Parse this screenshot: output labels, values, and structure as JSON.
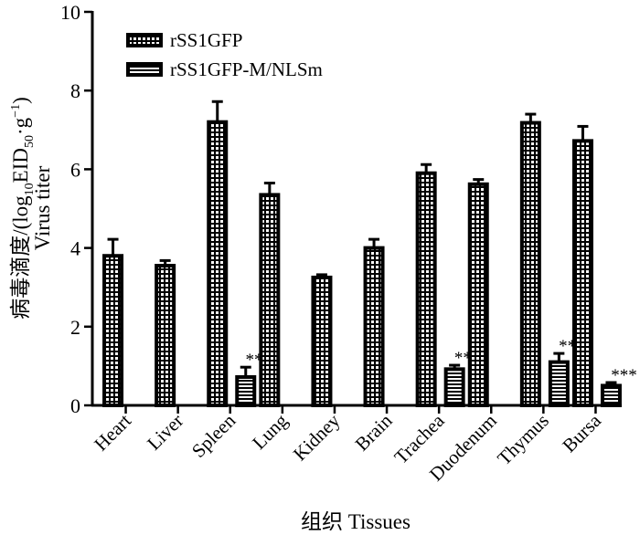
{
  "chart_data": {
    "type": "bar",
    "title": "",
    "xlabel": "组织 Tissues",
    "ylabel_cn": "病毒滴度/(log",
    "ylabel_sub10": "10",
    "ylabel_eid": "EID",
    "ylabel_sub50": "50",
    "ylabel_g": "·g",
    "ylabel_sup": "−1",
    "ylabel_close": ")",
    "ylabel_en": "Virus titer",
    "ylim": [
      0,
      10
    ],
    "yticks": [
      "0",
      "2",
      "4",
      "6",
      "8",
      "10"
    ],
    "categories": [
      "Heart",
      "Liver",
      "Spleen",
      "Lung",
      "Kidney",
      "Brain",
      "Trachea",
      "Duodenum",
      "Thymus",
      "Bursa"
    ],
    "series": [
      {
        "name": "rSS1GFP",
        "pattern": "checker",
        "values": [
          3.8,
          3.55,
          7.2,
          5.35,
          3.25,
          4.0,
          5.9,
          5.62,
          7.18,
          6.72
        ],
        "errors": [
          0.42,
          0.13,
          0.52,
          0.3,
          0.07,
          0.22,
          0.22,
          0.12,
          0.22,
          0.37
        ]
      },
      {
        "name": "rSS1GFP-M/NLSm",
        "pattern": "stripes",
        "values": [
          null,
          null,
          0.72,
          null,
          null,
          null,
          0.92,
          null,
          1.1,
          0.5
        ],
        "errors": [
          null,
          null,
          0.25,
          null,
          null,
          null,
          0.1,
          null,
          0.22,
          0.08
        ]
      }
    ],
    "significance": [
      "",
      "",
      "***",
      "",
      "",
      "",
      "***",
      "",
      "***",
      "***"
    ],
    "legend_position": "top-left"
  }
}
